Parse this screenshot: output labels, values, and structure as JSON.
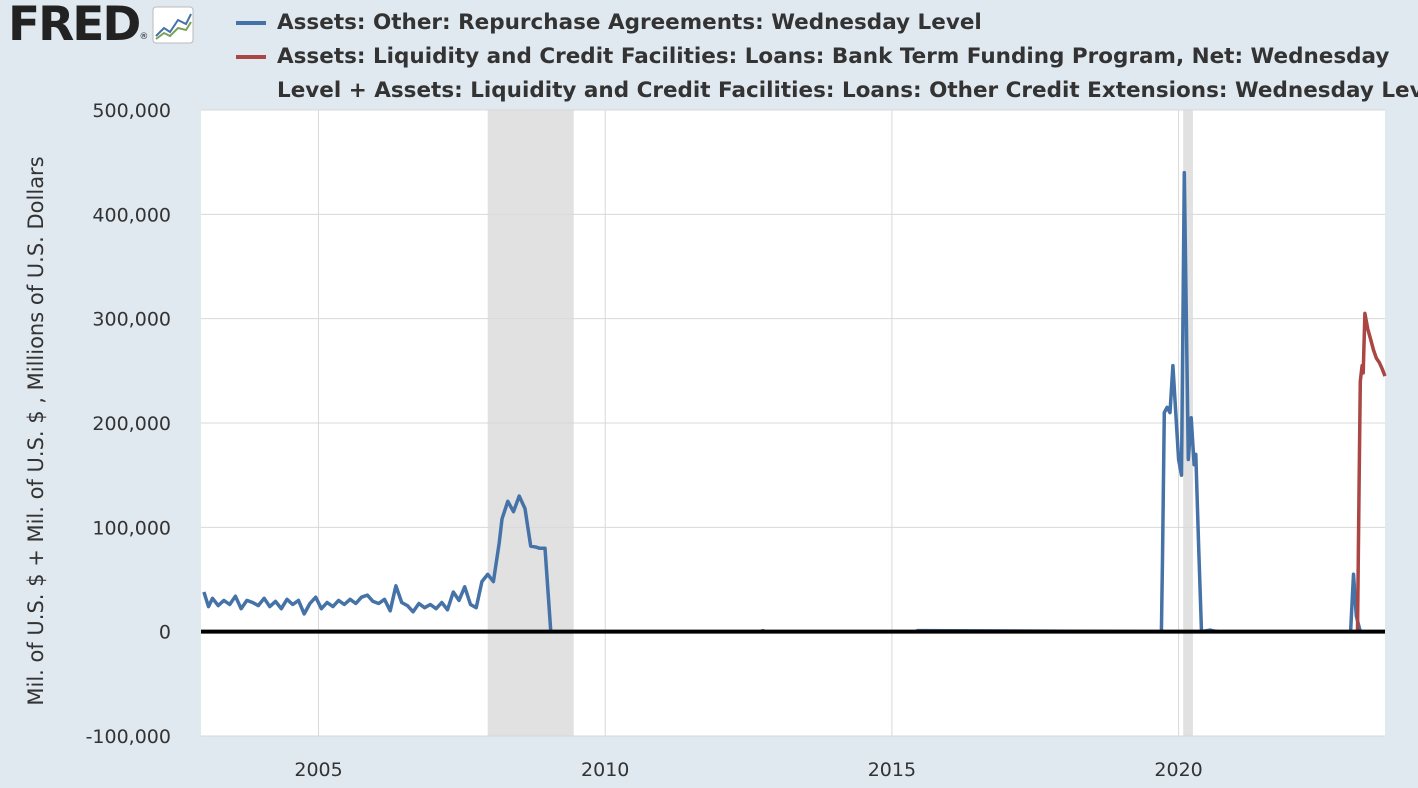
{
  "logo": {
    "text": "FRED",
    "reg": "®"
  },
  "legend": {
    "series1": "Assets: Other: Repurchase Agreements: Wednesday Level",
    "series2_line1": "Assets: Liquidity and Credit Facilities: Loans: Bank Term Funding Program, Net: Wednesday",
    "series2_line2": "Level + Assets: Liquidity and Credit Facilities: Loans: Other Credit Extensions: Wednesday Level"
  },
  "colors": {
    "series1": "#4572a7",
    "series2": "#aa4643",
    "recession": "#e1e1e1",
    "zero_line": "#000000",
    "grid": "#d8d8d8",
    "background": "#e1e9f0"
  },
  "chart_data": {
    "type": "line",
    "ylabel": "Mil. of U.S. $ + Mil. of U.S. $ , Millions of U.S. Dollars",
    "ylim": [
      -100000,
      500000
    ],
    "yticks": [
      -100000,
      0,
      100000,
      200000,
      300000,
      400000,
      500000
    ],
    "ytick_labels": [
      "-100,000",
      "0",
      "100,000",
      "200,000",
      "300,000",
      "400,000",
      "500,000"
    ],
    "xlim": [
      2002.95,
      2023.6
    ],
    "xticks": [
      2005,
      2010,
      2015,
      2020
    ],
    "xtick_labels": [
      "2005",
      "2010",
      "2015",
      "2020"
    ],
    "grid": true,
    "recessions": [
      [
        2007.95,
        2009.45
      ],
      [
        2020.08,
        2020.25
      ]
    ],
    "series": [
      {
        "name": "Assets: Other: Repurchase Agreements: Wednesday Level",
        "x": [
          2003.0,
          2003.08,
          2003.15,
          2003.25,
          2003.35,
          2003.45,
          2003.55,
          2003.65,
          2003.75,
          2003.85,
          2003.95,
          2004.05,
          2004.15,
          2004.25,
          2004.35,
          2004.45,
          2004.55,
          2004.65,
          2004.75,
          2004.85,
          2004.95,
          2005.05,
          2005.15,
          2005.25,
          2005.35,
          2005.45,
          2005.55,
          2005.65,
          2005.75,
          2005.85,
          2005.95,
          2006.05,
          2006.15,
          2006.25,
          2006.35,
          2006.45,
          2006.55,
          2006.65,
          2006.75,
          2006.85,
          2006.95,
          2007.05,
          2007.15,
          2007.25,
          2007.35,
          2007.45,
          2007.55,
          2007.65,
          2007.75,
          2007.85,
          2007.95,
          2008.05,
          2008.15,
          2008.2,
          2008.3,
          2008.4,
          2008.5,
          2008.6,
          2008.7,
          2008.8,
          2008.85,
          2008.95,
          2009.05,
          2009.15,
          2009.3,
          2012.7,
          2012.75,
          2012.8,
          2015.4,
          2015.45,
          2019.7,
          2019.72,
          2019.75,
          2019.8,
          2019.85,
          2019.9,
          2020.0,
          2020.05,
          2020.1,
          2020.17,
          2020.22,
          2020.27,
          2020.3,
          2020.35,
          2020.4,
          2020.45,
          2020.5,
          2020.55,
          2020.6,
          2020.7,
          2021.0,
          2021.5,
          2022.0,
          2022.9,
          2023.0,
          2023.05,
          2023.1,
          2023.17,
          2023.25,
          2023.6
        ],
        "y": [
          38000,
          24000,
          32000,
          25000,
          30000,
          26000,
          34000,
          22000,
          30000,
          28000,
          25000,
          32000,
          24000,
          29000,
          22000,
          31000,
          26000,
          30000,
          17000,
          27000,
          33000,
          22000,
          28000,
          24000,
          30000,
          26000,
          31000,
          27000,
          33000,
          35000,
          29000,
          27000,
          31000,
          20000,
          44000,
          28000,
          25000,
          19000,
          27000,
          23000,
          26000,
          22000,
          28000,
          21000,
          38000,
          30000,
          43000,
          26000,
          23000,
          48000,
          55000,
          48000,
          85000,
          108000,
          125000,
          115000,
          130000,
          118000,
          82000,
          81000,
          80000,
          80000,
          0,
          0,
          0,
          0,
          1000,
          0,
          0,
          1000,
          0,
          70000,
          210000,
          215000,
          210000,
          255000,
          165000,
          150000,
          440000,
          165000,
          205000,
          160000,
          170000,
          80000,
          0,
          500,
          1000,
          1500,
          800,
          0,
          0,
          0,
          0,
          0,
          0,
          55000,
          15000,
          0,
          0,
          0
        ]
      },
      {
        "name": "Assets: Liquidity and Credit Facilities: Loans: Bank Term Funding Program, Net: Wednesday Level + Assets: Liquidity and Credit Facilities: Loans: Other Credit Extensions: Wednesday Level",
        "x": [
          2023.12,
          2023.15,
          2023.17,
          2023.2,
          2023.22,
          2023.25,
          2023.3,
          2023.35,
          2023.4,
          2023.45,
          2023.5,
          2023.55,
          2023.6
        ],
        "y": [
          0,
          150000,
          240000,
          255000,
          248000,
          305000,
          290000,
          280000,
          270000,
          262000,
          258000,
          252000,
          245000
        ]
      }
    ]
  }
}
